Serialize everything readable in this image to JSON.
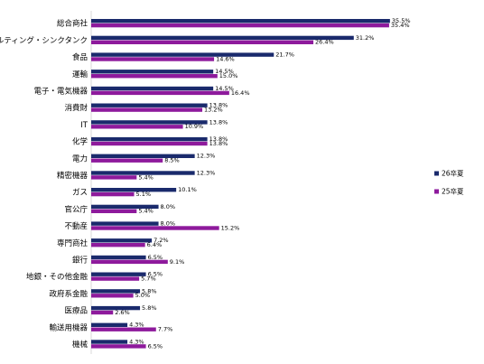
{
  "chart_data": {
    "type": "bar",
    "orientation": "horizontal",
    "title": "",
    "xlabel": "",
    "ylabel": "",
    "grid": false,
    "legend_position": "right",
    "categories": [
      "総合商社",
      "コンサルティング・シンクタンク",
      "食品",
      "運輸",
      "電子・電気機器",
      "消費財",
      "IT",
      "化学",
      "電力",
      "精密機器",
      "ガス",
      "官公庁",
      "不動産",
      "専門商社",
      "銀行",
      "地銀・その他金融",
      "政府系金融",
      "医療品",
      "輸送用機器",
      "機械"
    ],
    "series": [
      {
        "name": "26卒夏",
        "color": "#1a2a6c",
        "values": [
          35.5,
          31.2,
          21.7,
          14.5,
          14.5,
          13.8,
          13.8,
          13.8,
          12.3,
          12.3,
          10.1,
          8.0,
          8.0,
          7.2,
          6.5,
          6.5,
          5.8,
          5.8,
          4.3,
          4.3
        ]
      },
      {
        "name": "25卒夏",
        "color": "#8e1a9c",
        "values": [
          35.4,
          26.4,
          14.6,
          15.0,
          16.4,
          13.2,
          10.9,
          13.8,
          8.5,
          5.4,
          5.1,
          5.4,
          15.2,
          6.4,
          9.1,
          5.7,
          5.0,
          2.6,
          7.7,
          6.5
        ]
      }
    ],
    "value_suffix": "%"
  }
}
